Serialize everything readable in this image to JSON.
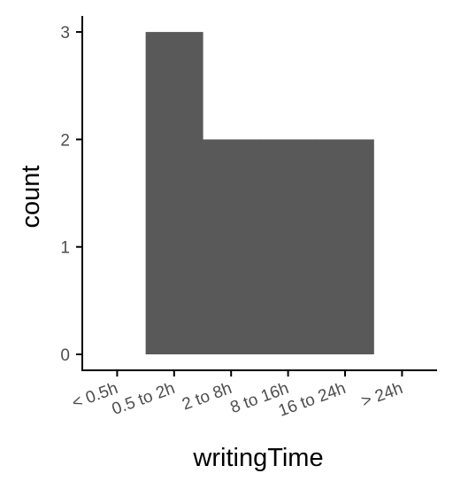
{
  "chart_data": {
    "type": "bar",
    "title": "",
    "xlabel": "writingTime",
    "ylabel": "count",
    "categories": [
      "< 0.5h",
      "0.5 to 2h",
      "2 to 8h",
      "8 to 16h",
      "16 to 24h",
      "> 24h"
    ],
    "values": [
      0,
      3,
      2,
      2,
      2,
      0
    ],
    "y_ticks": [
      0,
      1,
      2,
      3
    ],
    "ylim": [
      0,
      3
    ],
    "grid": false,
    "legend": "none",
    "bar_color": "#595959",
    "axis_color": "#000000",
    "tick_label_color": "#4d4d4d"
  }
}
